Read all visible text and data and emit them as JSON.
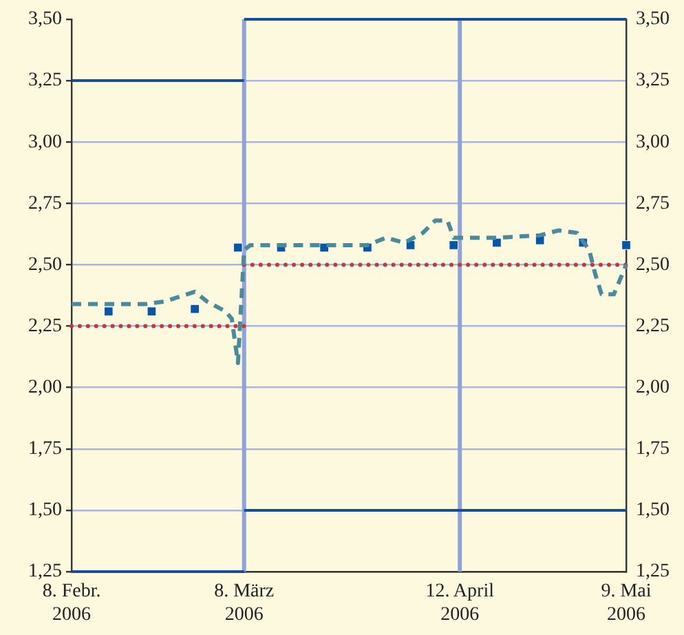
{
  "chart_data": {
    "type": "line",
    "xlim": [
      "2006-02-08",
      "2006-05-09"
    ],
    "xticks": [
      {
        "value": "2006-02-08",
        "label": "8. Febr. 2006"
      },
      {
        "value": "2006-03-08",
        "label": "8. März 2006"
      },
      {
        "value": "2006-04-12",
        "label": "12. April 2006"
      },
      {
        "value": "2006-05-09",
        "label": "9. Mai 2006"
      }
    ],
    "ylim": [
      1.25,
      3.5
    ],
    "yticks": [
      {
        "value": 1.25,
        "label": "1,25"
      },
      {
        "value": 1.5,
        "label": "1,50"
      },
      {
        "value": 1.75,
        "label": "1,75"
      },
      {
        "value": 2,
        "label": "2,00"
      },
      {
        "value": 2.25,
        "label": "2,25"
      },
      {
        "value": 2.5,
        "label": "2,50"
      },
      {
        "value": 2.75,
        "label": "2,75"
      },
      {
        "value": 3,
        "label": "3,00"
      },
      {
        "value": 3.25,
        "label": "3,25"
      },
      {
        "value": 3.5,
        "label": "3,50"
      }
    ],
    "y2lim": [
      1.25,
      3.5
    ],
    "y2ticks": [
      {
        "value": 1.25,
        "label": "1,25"
      },
      {
        "value": 1.5,
        "label": "1,50"
      },
      {
        "value": 1.75,
        "label": "1,75"
      },
      {
        "value": 2,
        "label": "2,00"
      },
      {
        "value": 2.25,
        "label": "2,25"
      },
      {
        "value": 2.5,
        "label": "2,50"
      },
      {
        "value": 2.75,
        "label": "2,75"
      },
      {
        "value": 3,
        "label": "3,00"
      },
      {
        "value": 3.25,
        "label": "3,25"
      },
      {
        "value": 3.5,
        "label": "3,50"
      }
    ],
    "grid": "y",
    "legend": false,
    "ref_lines": [
      {
        "axis": "x",
        "value": "2006-03-08",
        "color": "#8fa3d8"
      },
      {
        "axis": "x",
        "value": "2006-04-12",
        "color": "#8fa3d8"
      }
    ],
    "series": [
      {
        "color": "#1a4d99",
        "line_style": "solid",
        "marker": "none",
        "x": [
          "2006-02-08",
          "2006-03-08"
        ],
        "values": [
          3.25,
          3.25
        ]
      },
      {
        "color": "#1a4d99",
        "line_style": "solid",
        "marker": "none",
        "x": [
          "2006-03-08",
          "2006-05-09"
        ],
        "values": [
          3.5,
          3.5
        ]
      },
      {
        "color": "#1a4d99",
        "line_style": "solid",
        "marker": "none",
        "x": [
          "2006-02-08",
          "2006-03-08"
        ],
        "values": [
          1.25,
          1.25
        ]
      },
      {
        "color": "#1a4d99",
        "line_style": "solid",
        "marker": "none",
        "x": [
          "2006-03-08",
          "2006-05-09"
        ],
        "values": [
          1.5,
          1.5
        ]
      },
      {
        "color": "#c0393b",
        "line_style": "dotted",
        "marker": "none",
        "x": [
          "2006-02-08",
          "2006-03-08"
        ],
        "values": [
          2.25,
          2.25
        ]
      },
      {
        "color": "#c0393b",
        "line_style": "dotted",
        "marker": "none",
        "x": [
          "2006-03-08",
          "2006-05-09"
        ],
        "values": [
          2.5,
          2.5
        ]
      },
      {
        "color": "#4a8a9a",
        "line_style": "dashed",
        "marker": "none",
        "x": [
          "2006-02-08",
          "2006-02-20",
          "2006-02-23",
          "2006-02-28",
          "2006-03-02",
          "2006-03-05",
          "2006-03-06",
          "2006-03-07",
          "2006-03-08",
          "2006-03-09",
          "2006-03-28",
          "2006-03-31",
          "2006-04-03",
          "2006-04-06",
          "2006-04-08",
          "2006-04-10",
          "2006-04-11",
          "2006-04-18",
          "2006-04-25",
          "2006-04-28",
          "2006-05-01",
          "2006-05-03",
          "2006-05-04",
          "2006-05-05",
          "2006-05-07",
          "2006-05-09"
        ],
        "values": [
          2.34,
          2.34,
          2.35,
          2.39,
          2.35,
          2.31,
          2.28,
          2.1,
          2.56,
          2.58,
          2.58,
          2.61,
          2.59,
          2.63,
          2.68,
          2.68,
          2.61,
          2.61,
          2.62,
          2.64,
          2.63,
          2.56,
          2.46,
          2.38,
          2.38,
          2.5
        ]
      },
      {
        "type": "scatter",
        "color": "#0b55a8",
        "marker": "square",
        "x": [
          "2006-02-14",
          "2006-02-21",
          "2006-02-28",
          "2006-03-07",
          "2006-03-14",
          "2006-03-21",
          "2006-03-28",
          "2006-04-04",
          "2006-04-11",
          "2006-04-18",
          "2006-04-25",
          "2006-05-02",
          "2006-05-09"
        ],
        "values": [
          2.31,
          2.31,
          2.32,
          2.57,
          2.57,
          2.57,
          2.57,
          2.58,
          2.58,
          2.59,
          2.6,
          2.59,
          2.58
        ]
      }
    ]
  }
}
